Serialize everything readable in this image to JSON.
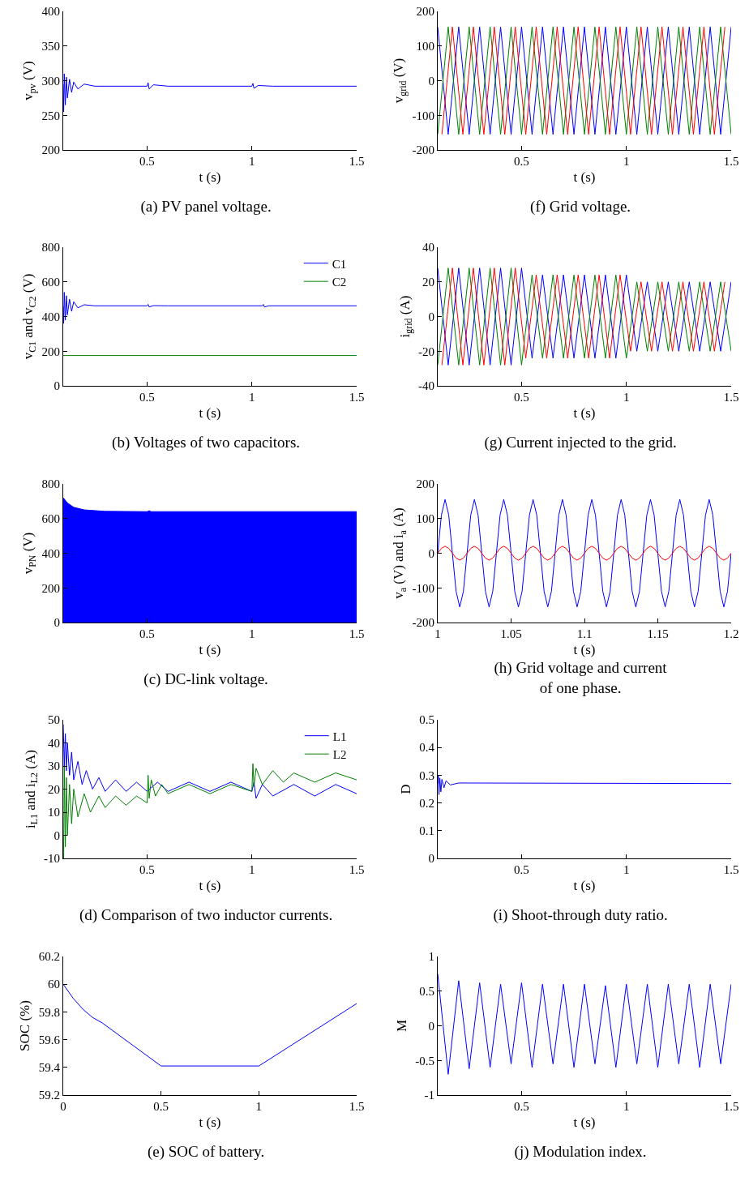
{
  "chart_data": [
    {
      "type": "line",
      "title": "(a) PV panel voltage.",
      "xlabel": "t (s)",
      "ylabel": "v$_{pv}$ (V)",
      "xlim": [
        0.1,
        1.5
      ],
      "xticks": [
        0.5,
        1,
        1.5
      ],
      "ylim": [
        200,
        400
      ],
      "yticks": [
        200,
        250,
        300,
        350,
        400
      ],
      "series": [
        {
          "color": "#0000ff",
          "x": [
            0.1,
            0.102,
            0.105,
            0.11,
            0.115,
            0.12,
            0.13,
            0.14,
            0.15,
            0.17,
            0.2,
            0.25,
            0.5,
            0.505,
            0.51,
            0.53,
            0.6,
            1,
            1.005,
            1.01,
            1.03,
            1.1,
            1.5
          ],
          "values": [
            295,
            255,
            310,
            265,
            305,
            275,
            302,
            283,
            298,
            288,
            295,
            292,
            292,
            297,
            288,
            294,
            292,
            292,
            296,
            289,
            293,
            292,
            292
          ]
        }
      ]
    },
    {
      "type": "line",
      "title": "(f) Grid voltage.",
      "xlabel": "t (s)",
      "ylabel": "v$_{grid}$ (V)",
      "xlim": [
        0.1,
        1.5
      ],
      "xticks": [
        0.5,
        1,
        1.5
      ],
      "ylim": [
        -200,
        200
      ],
      "yticks": [
        -200,
        -100,
        0,
        100,
        200
      ],
      "x": [
        0.1,
        0.15,
        0.2,
        0.25,
        0.3,
        0.35,
        0.4,
        0.45,
        0.5,
        0.55,
        0.6,
        0.65,
        0.7,
        0.75,
        0.8,
        0.85,
        0.9,
        0.95,
        1,
        1.05,
        1.1,
        1.15,
        1.2,
        1.25,
        1.3,
        1.35,
        1.4,
        1.45,
        1.5
      ],
      "series": [
        {
          "color": "#0000ff",
          "values": [
            155,
            -155,
            155,
            -155,
            155,
            -155,
            155,
            -155,
            155,
            -155,
            155,
            -155,
            155,
            -155,
            155,
            -155,
            155,
            -155,
            155,
            -155,
            155,
            -155,
            155,
            -155,
            155,
            -155,
            155,
            -155,
            155
          ]
        },
        {
          "color": "#008000",
          "values": [
            -155,
            155,
            -155,
            155,
            -155,
            155,
            -155,
            155,
            -155,
            155,
            -155,
            155,
            -155,
            155,
            -155,
            155,
            -155,
            155,
            -155,
            155,
            -155,
            155,
            -155,
            155,
            -155,
            155,
            -155,
            155,
            -155
          ]
        },
        {
          "color": "#ff0000",
          "x": [
            0.12,
            0.17,
            0.22,
            0.27,
            0.32,
            0.37,
            0.42,
            0.47,
            0.52,
            0.57,
            0.62,
            0.67,
            0.72,
            0.77,
            0.82,
            0.87,
            0.92,
            0.97,
            1.02,
            1.07,
            1.12,
            1.17,
            1.22,
            1.27,
            1.32,
            1.37,
            1.42,
            1.47
          ],
          "values": [
            -155,
            155,
            -155,
            155,
            -155,
            155,
            -155,
            155,
            -155,
            155,
            -155,
            155,
            -155,
            155,
            -155,
            155,
            -155,
            155,
            -155,
            155,
            -155,
            155,
            -155,
            155,
            -155,
            155,
            -155,
            155
          ]
        }
      ]
    },
    {
      "type": "line",
      "title": "(b) Voltages of two capacitors.",
      "xlabel": "t (s)",
      "ylabel": "v$_{C1}$ and v$_{C2}$ (V)",
      "xlim": [
        0.1,
        1.5
      ],
      "xticks": [
        0.5,
        1,
        1.5
      ],
      "ylim": [
        0,
        800
      ],
      "yticks": [
        0,
        200,
        400,
        600,
        800
      ],
      "legend": "top right",
      "series": [
        {
          "name": "C1",
          "color": "#0000ff",
          "x": [
            0.1,
            0.102,
            0.105,
            0.11,
            0.115,
            0.12,
            0.13,
            0.14,
            0.15,
            0.17,
            0.2,
            0.25,
            0.5,
            0.505,
            0.51,
            0.53,
            0.6,
            1.05,
            1.055,
            1.06,
            1.08,
            1.5
          ],
          "values": [
            460,
            360,
            540,
            380,
            520,
            410,
            500,
            430,
            485,
            450,
            468,
            462,
            462,
            470,
            455,
            463,
            462,
            462,
            470,
            455,
            462,
            462
          ]
        },
        {
          "name": "C2",
          "color": "#008000",
          "x": [
            0.1,
            1.5
          ],
          "values": [
            175,
            175
          ]
        }
      ]
    },
    {
      "type": "line",
      "title": "(g) Current injected to the grid.",
      "xlabel": "t (s)",
      "ylabel": "i$_{grid}$ (A)",
      "xlim": [
        0.1,
        1.5
      ],
      "xticks": [
        0.5,
        1,
        1.5
      ],
      "ylim": [
        -40,
        40
      ],
      "yticks": [
        -40,
        -20,
        0,
        20,
        40
      ],
      "x": [
        0.1,
        0.15,
        0.2,
        0.25,
        0.3,
        0.35,
        0.4,
        0.45,
        0.5,
        0.55,
        0.6,
        0.65,
        0.7,
        0.75,
        0.8,
        0.85,
        0.9,
        0.95,
        1,
        1.05,
        1.1,
        1.15,
        1.2,
        1.25,
        1.3,
        1.35,
        1.4,
        1.45,
        1.5
      ],
      "series": [
        {
          "color": "#0000ff",
          "values": [
            28,
            -28,
            28,
            -28,
            28,
            -28,
            28,
            -28,
            28,
            -24,
            24,
            -24,
            24,
            -24,
            24,
            -24,
            24,
            -24,
            24,
            -20,
            20,
            -20,
            20,
            -20,
            20,
            -20,
            20,
            -20,
            20
          ]
        },
        {
          "color": "#008000",
          "values": [
            -28,
            28,
            -28,
            28,
            -28,
            28,
            -28,
            28,
            -28,
            24,
            -24,
            24,
            -24,
            24,
            -24,
            24,
            -24,
            24,
            -24,
            20,
            -20,
            20,
            -20,
            20,
            -20,
            20,
            -20,
            20,
            -20
          ]
        },
        {
          "color": "#ff0000",
          "x": [
            0.12,
            0.17,
            0.22,
            0.27,
            0.32,
            0.37,
            0.42,
            0.47,
            0.52,
            0.57,
            0.62,
            0.67,
            0.72,
            0.77,
            0.82,
            0.87,
            0.92,
            0.97,
            1.02,
            1.07,
            1.12,
            1.17,
            1.22,
            1.27,
            1.32,
            1.37,
            1.42,
            1.47
          ],
          "values": [
            -28,
            28,
            -28,
            28,
            -28,
            28,
            -28,
            28,
            -24,
            24,
            -24,
            24,
            -24,
            24,
            -24,
            24,
            -24,
            24,
            -20,
            20,
            -20,
            20,
            -20,
            20,
            -20,
            20,
            -20,
            20
          ]
        }
      ]
    },
    {
      "type": "area",
      "title": "(c) DC-link voltage.",
      "xlabel": "t (s)",
      "ylabel": "v$_{PN}$ (V)",
      "xlim": [
        0.1,
        1.5
      ],
      "xticks": [
        0.5,
        1,
        1.5
      ],
      "ylim": [
        0,
        800
      ],
      "yticks": [
        0,
        200,
        400,
        600,
        800
      ],
      "series": [
        {
          "color": "#0000ff",
          "x": [
            0.1,
            0.12,
            0.15,
            0.2,
            0.3,
            0.5,
            0.51,
            0.52,
            1.5
          ],
          "values": [
            720,
            690,
            665,
            650,
            642,
            640,
            645,
            640,
            640
          ]
        }
      ]
    },
    {
      "type": "line",
      "title": "(h) Grid voltage and current\nof one phase.",
      "xlabel": "t (s)",
      "ylabel": "v$_{a}$ (V) and i$_{a}$ (A)",
      "xlim": [
        1,
        1.2
      ],
      "xticks": [
        1,
        1.05,
        1.1,
        1.15,
        1.2
      ],
      "ylim": [
        -200,
        200
      ],
      "yticks": [
        -200,
        -100,
        0,
        100,
        200
      ],
      "x": [
        1,
        1.0025,
        1.005,
        1.0075,
        1.01,
        1.0125,
        1.015,
        1.0175,
        1.02,
        1.0225,
        1.025,
        1.0275,
        1.03,
        1.0325,
        1.035,
        1.0375,
        1.04,
        1.0425,
        1.045,
        1.0475,
        1.05,
        1.0525,
        1.055,
        1.0575,
        1.06,
        1.0625,
        1.065,
        1.0675,
        1.07,
        1.0725,
        1.075,
        1.0775,
        1.08,
        1.0825,
        1.085,
        1.0875,
        1.09,
        1.0925,
        1.095,
        1.0975,
        1.1,
        1.1025,
        1.105,
        1.1075,
        1.11,
        1.1125,
        1.115,
        1.1175,
        1.12,
        1.1225,
        1.125,
        1.1275,
        1.13,
        1.1325,
        1.135,
        1.1375,
        1.14,
        1.1425,
        1.145,
        1.1475,
        1.15,
        1.1525,
        1.155,
        1.1575,
        1.16,
        1.1625,
        1.165,
        1.1675,
        1.17,
        1.1725,
        1.175,
        1.1775,
        1.18,
        1.1825,
        1.185,
        1.1875,
        1.19,
        1.1925,
        1.195,
        1.1975,
        1.2
      ],
      "series": [
        {
          "color": "#0000ff",
          "values": [
            0,
            110,
            155,
            110,
            0,
            -110,
            -155,
            -110,
            0,
            110,
            155,
            110,
            0,
            -110,
            -155,
            -110,
            0,
            110,
            155,
            110,
            0,
            -110,
            -155,
            -110,
            0,
            110,
            155,
            110,
            0,
            -110,
            -155,
            -110,
            0,
            110,
            155,
            110,
            0,
            -110,
            -155,
            -110,
            0,
            110,
            155,
            110,
            0,
            -110,
            -155,
            -110,
            0,
            110,
            155,
            110,
            0,
            -110,
            -155,
            -110,
            0,
            110,
            155,
            110,
            0,
            -110,
            -155,
            -110,
            0,
            110,
            155,
            110,
            0,
            -110,
            -155,
            -110,
            0,
            110,
            155,
            110,
            0,
            -110,
            -155,
            -110,
            0
          ]
        },
        {
          "color": "#ff0000",
          "values": [
            0,
            14,
            20,
            14,
            0,
            -14,
            -20,
            -14,
            0,
            14,
            20,
            14,
            0,
            -14,
            -20,
            -14,
            0,
            14,
            20,
            14,
            0,
            -14,
            -20,
            -14,
            0,
            14,
            20,
            14,
            0,
            -14,
            -20,
            -14,
            0,
            14,
            20,
            14,
            0,
            -14,
            -20,
            -14,
            0,
            14,
            20,
            14,
            0,
            -14,
            -20,
            -14,
            0,
            14,
            20,
            14,
            0,
            -14,
            -20,
            -14,
            0,
            14,
            20,
            14,
            0,
            -14,
            -20,
            -14,
            0,
            14,
            20,
            14,
            0,
            -14,
            -20,
            -14,
            0,
            14,
            20,
            14,
            0,
            -14,
            -20,
            -14,
            0
          ]
        }
      ]
    },
    {
      "type": "line",
      "title": "(d) Comparison of two inductor currents.",
      "xlabel": "t (s)",
      "ylabel": "i$_{L1}$ and i$_{L2}$ (A)",
      "xlim": [
        0.1,
        1.5
      ],
      "xticks": [
        0.5,
        1,
        1.5
      ],
      "ylim": [
        -10,
        50
      ],
      "yticks": [
        -10,
        0,
        10,
        20,
        30,
        40,
        50
      ],
      "legend": "top right",
      "series": [
        {
          "name": "L1",
          "color": "#0000ff",
          "x": [
            0.1,
            0.105,
            0.11,
            0.115,
            0.12,
            0.13,
            0.14,
            0.15,
            0.17,
            0.19,
            0.21,
            0.24,
            0.27,
            0.3,
            0.35,
            0.4,
            0.45,
            0.5,
            0.55,
            0.6,
            0.7,
            0.8,
            0.9,
            1,
            1.01,
            1.02,
            1.05,
            1.1,
            1.2,
            1.3,
            1.4,
            1.5
          ],
          "values": [
            48,
            30,
            44,
            28,
            40,
            26,
            36,
            24,
            32,
            22,
            28,
            20,
            25,
            19,
            24,
            19,
            23,
            19,
            23,
            19,
            23,
            19,
            23,
            19,
            23,
            16,
            22,
            17,
            22,
            17,
            22,
            18
          ]
        },
        {
          "name": "L2",
          "color": "#008000",
          "x": [
            0.1,
            0.102,
            0.105,
            0.11,
            0.115,
            0.12,
            0.13,
            0.14,
            0.15,
            0.17,
            0.2,
            0.23,
            0.27,
            0.3,
            0.35,
            0.4,
            0.45,
            0.5,
            0.505,
            0.51,
            0.52,
            0.54,
            0.57,
            0.6,
            0.7,
            0.8,
            0.9,
            1,
            1.005,
            1.01,
            1.02,
            1.05,
            1.1,
            1.15,
            1.2,
            1.3,
            1.4,
            1.5
          ],
          "values": [
            0,
            -10,
            30,
            -5,
            25,
            0,
            22,
            5,
            20,
            8,
            18,
            10,
            17,
            12,
            17,
            13,
            17,
            14,
            26,
            16,
            24,
            17,
            22,
            18,
            22,
            18,
            22,
            19,
            31,
            21,
            29,
            22,
            28,
            23,
            27,
            23,
            27,
            24
          ]
        }
      ]
    },
    {
      "type": "line",
      "title": "(i) Shoot-through duty ratio.",
      "xlabel": "t (s)",
      "ylabel": "D",
      "xlim": [
        0.1,
        1.5
      ],
      "xticks": [
        0.5,
        1,
        1.5
      ],
      "ylim": [
        0,
        0.5
      ],
      "yticks": [
        0,
        0.1,
        0.2,
        0.3,
        0.4,
        0.5
      ],
      "series": [
        {
          "color": "#0000ff",
          "x": [
            0.1,
            0.103,
            0.106,
            0.11,
            0.115,
            0.12,
            0.13,
            0.14,
            0.16,
            0.2,
            1.5
          ],
          "values": [
            0.27,
            0.3,
            0.23,
            0.29,
            0.24,
            0.285,
            0.255,
            0.28,
            0.265,
            0.272,
            0.27
          ]
        }
      ]
    },
    {
      "type": "line",
      "title": "(e) SOC of battery.",
      "xlabel": "t (s)",
      "ylabel": "SOC (%)",
      "xlim": [
        0,
        1.5
      ],
      "xticks": [
        0,
        0.5,
        1,
        1.5
      ],
      "ylim": [
        59.2,
        60.2
      ],
      "yticks": [
        59.2,
        59.4,
        59.6,
        59.8,
        60,
        60.2
      ],
      "series": [
        {
          "color": "#0000ff",
          "x": [
            0,
            0.05,
            0.1,
            0.15,
            0.2,
            0.5,
            1,
            1.5
          ],
          "values": [
            60,
            59.9,
            59.82,
            59.76,
            59.72,
            59.41,
            59.41,
            59.86
          ]
        }
      ]
    },
    {
      "type": "line",
      "title": "(j) Modulation index.",
      "xlabel": "t (s)",
      "ylabel": "M",
      "xlim": [
        0.1,
        1.5
      ],
      "xticks": [
        0.5,
        1,
        1.5
      ],
      "ylim": [
        -1,
        1
      ],
      "yticks": [
        -1,
        -0.5,
        0,
        0.5,
        1
      ],
      "x": [
        0.1,
        0.15,
        0.2,
        0.25,
        0.3,
        0.35,
        0.4,
        0.45,
        0.5,
        0.55,
        0.6,
        0.65,
        0.7,
        0.75,
        0.8,
        0.85,
        0.9,
        0.95,
        1,
        1.05,
        1.1,
        1.15,
        1.2,
        1.25,
        1.3,
        1.35,
        1.4,
        1.45,
        1.5
      ],
      "series": [
        {
          "color": "#0000ff",
          "values": [
            0.75,
            -0.7,
            0.65,
            -0.62,
            0.62,
            -0.6,
            0.6,
            -0.55,
            0.62,
            -0.6,
            0.6,
            -0.55,
            0.6,
            -0.6,
            0.6,
            -0.55,
            0.58,
            -0.6,
            0.6,
            -0.55,
            0.6,
            -0.6,
            0.6,
            -0.55,
            0.6,
            -0.6,
            0.6,
            -0.55,
            0.6
          ]
        }
      ]
    }
  ]
}
